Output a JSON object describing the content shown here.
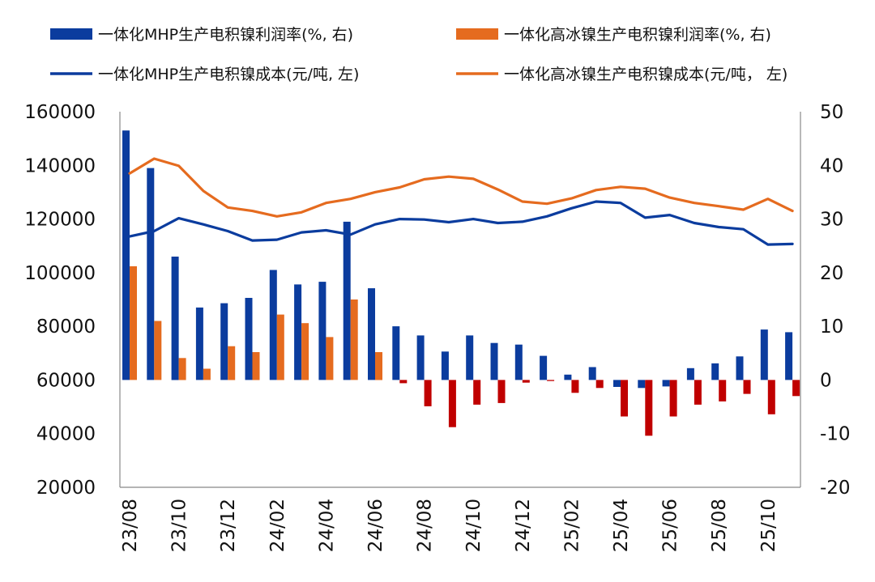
{
  "chart_data": {
    "type": "bar",
    "x_categories": [
      "23/08",
      "23/09",
      "23/10",
      "23/11",
      "23/12",
      "24/01",
      "24/02",
      "24/03",
      "24/04",
      "24/05",
      "24/06",
      "24/07",
      "24/08",
      "24/09",
      "24/10",
      "24/11",
      "24/12",
      "25/01",
      "25/02",
      "25/03",
      "25/04",
      "25/05",
      "25/06",
      "25/07",
      "25/08",
      "25/09",
      "25/10",
      "25/11"
    ],
    "x_tick_labels": [
      "23/08",
      "23/10",
      "23/12",
      "24/02",
      "24/04",
      "24/06",
      "24/08",
      "24/10",
      "24/12",
      "25/02",
      "25/04",
      "25/06",
      "25/08",
      "25/10"
    ],
    "y_left": {
      "range": [
        20000,
        160000
      ],
      "ticks": [
        "20000",
        "40000",
        "60000",
        "80000",
        "100000",
        "120000",
        "140000",
        "160000"
      ]
    },
    "y_right": {
      "range": [
        -20,
        50
      ],
      "ticks": [
        "-20",
        "-10",
        "0",
        "10",
        "20",
        "30",
        "40",
        "50"
      ]
    },
    "series": [
      {
        "name": "一体化MHP生产电积镍利润率(%, 右)",
        "kind": "bar",
        "axis": "right",
        "color": "#0B3C9E",
        "values": [
          46.5,
          39.5,
          23,
          13.5,
          14.3,
          15.3,
          20.5,
          17.8,
          18.3,
          29.5,
          17.1,
          10,
          8.3,
          5.3,
          8.3,
          6.9,
          6.6,
          4.5,
          1,
          2.4,
          -1.3,
          -1.5,
          -1.2,
          2.2,
          3.1,
          4.4,
          9.4,
          8.9
        ]
      },
      {
        "name": "一体化高冰镍生产电积镍利润率(%, 右)",
        "kind": "bar",
        "axis": "right",
        "color": "#E56B1F",
        "values": [
          21.2,
          11,
          4.1,
          2.1,
          6.3,
          5.2,
          12.2,
          10.6,
          8,
          15,
          5.2,
          null,
          null,
          null,
          null,
          null,
          null,
          null,
          null,
          null,
          null,
          null,
          null,
          null,
          null,
          null,
          null,
          null
        ]
      },
      {
        "name": "负利润率",
        "kind": "bar",
        "axis": "right",
        "color": "#C00000",
        "legend": false,
        "values": [
          null,
          null,
          null,
          null,
          null,
          null,
          null,
          null,
          null,
          null,
          null,
          -0.6,
          -4.9,
          -8.8,
          -4.6,
          -4.3,
          -0.5,
          -0.2,
          -2.4,
          -1.5,
          -6.8,
          -10.4,
          -6.8,
          -4.6,
          -4,
          -2.6,
          -6.4,
          -3
        ]
      },
      {
        "name": "一体化MHP生产电积镍成本(元/吨, 左)",
        "kind": "line",
        "axis": "left",
        "color": "#0B3C9E",
        "values": [
          113500,
          115500,
          120300,
          118000,
          115500,
          112000,
          112300,
          115000,
          115800,
          114200,
          118000,
          120000,
          119800,
          118800,
          120000,
          118500,
          119000,
          121000,
          124000,
          126500,
          126000,
          120500,
          121500,
          118500,
          117000,
          116200,
          110500,
          110700
        ]
      },
      {
        "name": "一体化高冰镍生产电积镍成本(元/吨，  左)",
        "kind": "line",
        "axis": "left",
        "color": "#E56B1F",
        "values": [
          137000,
          142500,
          139800,
          130500,
          124300,
          123000,
          121000,
          122500,
          126000,
          127500,
          130000,
          131800,
          134800,
          135800,
          135000,
          131000,
          126500,
          125700,
          127700,
          130800,
          132000,
          131300,
          128000,
          126000,
          124800,
          123500,
          127500,
          123000
        ]
      }
    ],
    "grid": false,
    "legend_position": "top"
  }
}
